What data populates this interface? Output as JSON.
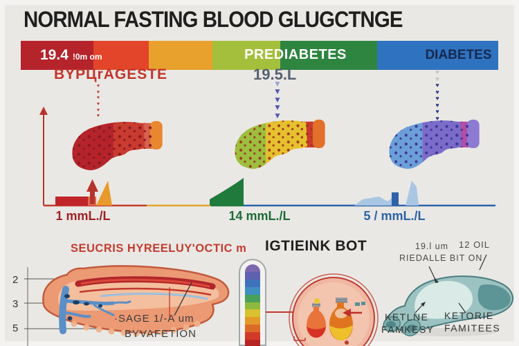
{
  "title": "NORMAL FASTING BLOOD GLUGCTNGE",
  "bar": {
    "range_value": "19.4",
    "range_sub": "!0m om",
    "prediabetes": "PREDIABETES",
    "diabetes": "DIABETES"
  },
  "columns": {
    "normal": {
      "heading": "BYPЦrAGESTE",
      "axis_value": "1 mmL./L"
    },
    "prediabetes": {
      "heading": "19.5.L",
      "axis_value": "14 mmL./L"
    },
    "diabetes": {
      "axis_value": "5 / mmL./L"
    }
  },
  "sections": {
    "left_heading": "SEUCRIS HYREELUY'OCTIC m",
    "center_heading": "IGTIEINK BOT"
  },
  "liver_diagram": {
    "ruler": [
      "2",
      "3",
      "5"
    ],
    "caption1": "·SAGE 1/-A um",
    "caption2": "BYVAFETION"
  },
  "organ_diagram": {
    "top_label1": "19.l um",
    "top_label2": "12 OIL",
    "top_label3": "RIEDALLE BIT ON",
    "bottom_left1": "KETLNE",
    "bottom_left2": "FAMKESY",
    "bottom_right1": "KETORIE",
    "bottom_right2": "FAMITEES"
  },
  "icons": {
    "down_arrow": "▼",
    "heart": "♥",
    "up_arrow": "▲"
  },
  "colors": {
    "bar": [
      "#b5232b",
      "#e2452a",
      "#e9a12e",
      "#a3bf3b",
      "#2d8540",
      "#2f72c0"
    ],
    "title_text": "#1f1f1f",
    "accent_red": "#c2352c",
    "normal_value": "#9e2025",
    "prediabetes_value": "#1d6b37",
    "diabetes_value": "#2b62a8",
    "diabetes_label_text": "#16294e"
  }
}
